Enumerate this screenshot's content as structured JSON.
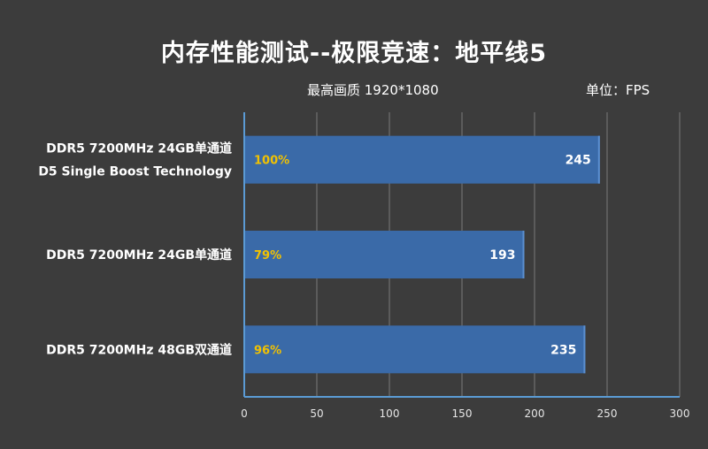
{
  "title": "内存性能测试--极限竞速：地平线5",
  "subtitle": "最高画质 1920*1080",
  "unit_label": "单位：FPS",
  "chart_data": {
    "type": "bar",
    "orientation": "horizontal",
    "title": "内存性能测试--极限竞速：地平线5",
    "subtitle": "最高画质 1920*1080",
    "unit": "FPS",
    "categories": [
      [
        "DDR5 7200MHz 24GB单通道",
        "D5 Single Boost Technology"
      ],
      [
        "DDR5 7200MHz 24GB单通道"
      ],
      [
        "DDR5 7200MHz 48GB双通道"
      ]
    ],
    "values": [
      245,
      193,
      235
    ],
    "percent_labels": [
      "100%",
      "79%",
      "96%"
    ],
    "xlim": [
      0,
      300
    ],
    "xticks": [
      0,
      50,
      100,
      150,
      200,
      250,
      300
    ],
    "grid": true,
    "colors": {
      "bar": "#3a6aa8",
      "bar_edge": "#5b8fd0",
      "axis": "#5b9bd5",
      "grid": "#7a7a7a",
      "percent": "#f2c200",
      "background": "#3c3c3c"
    }
  }
}
